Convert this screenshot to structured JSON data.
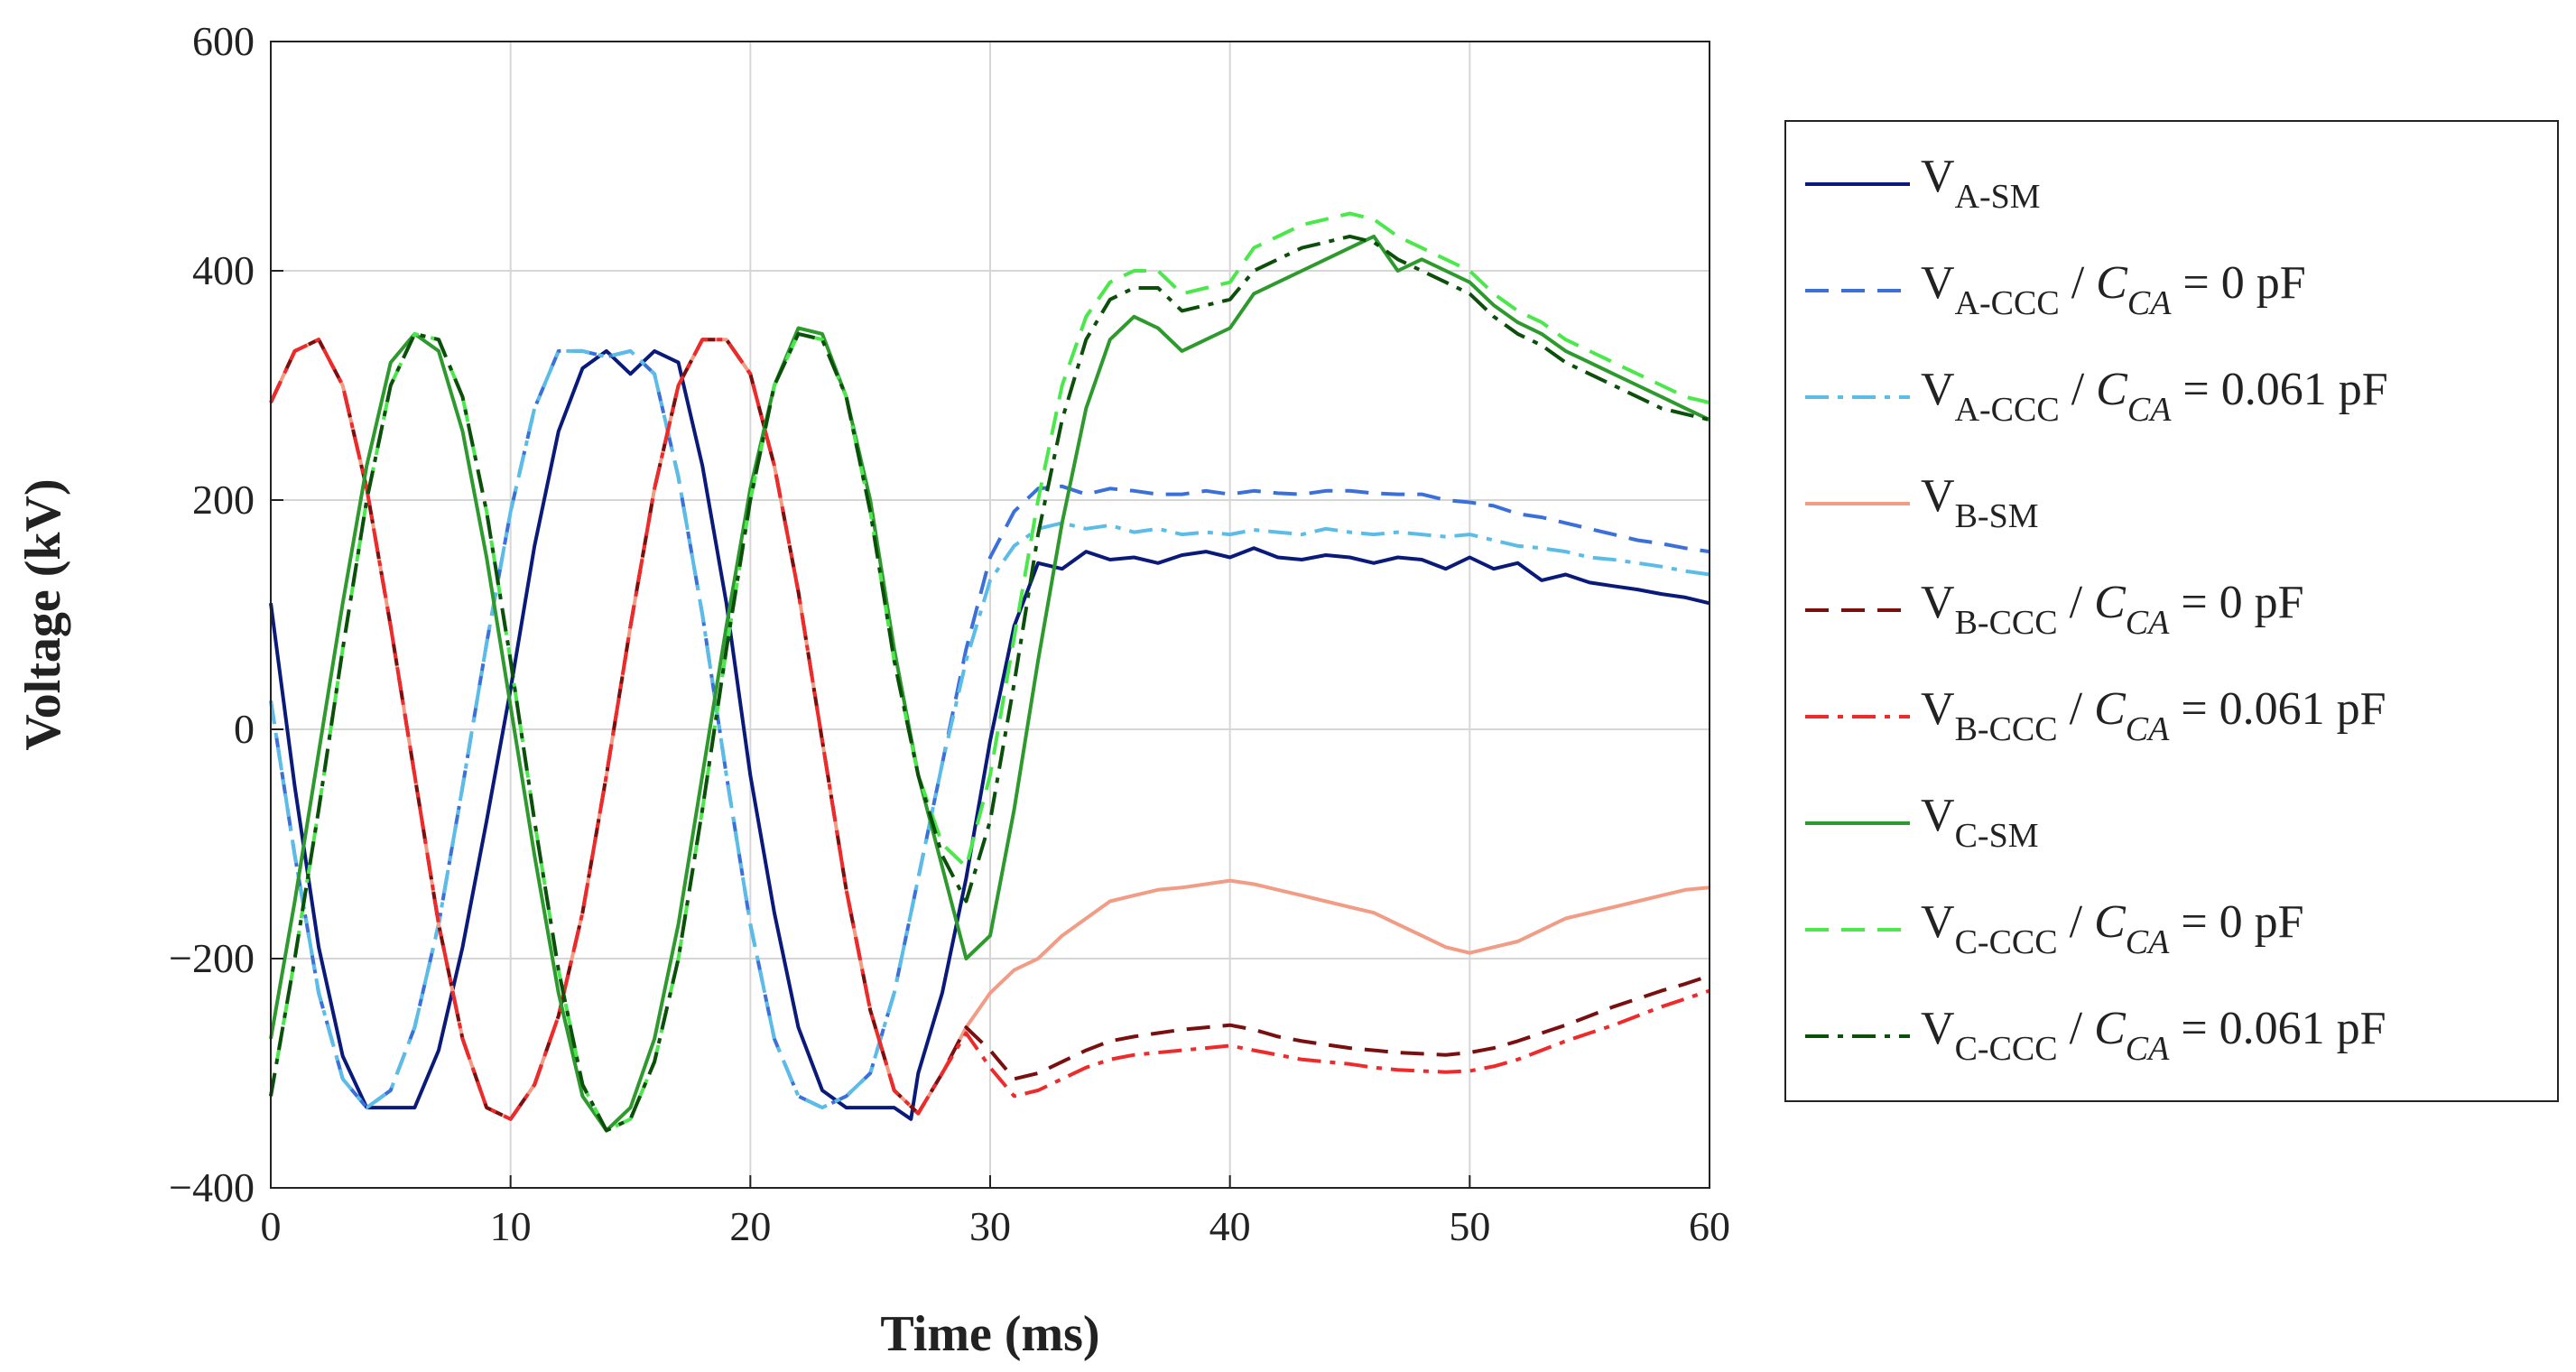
{
  "chart_data": {
    "type": "line",
    "title": "",
    "xlabel": "Time (ms)",
    "ylabel": "Voltage (kV)",
    "xlim": [
      0,
      60
    ],
    "ylim": [
      -400,
      600
    ],
    "xticks": [
      0,
      10,
      20,
      30,
      40,
      50,
      60
    ],
    "yticks": [
      -400,
      -200,
      0,
      200,
      400,
      600
    ],
    "xtick_labels": [
      "0",
      "10",
      "20",
      "30",
      "40",
      "50",
      "60"
    ],
    "ytick_labels": [
      "−400",
      "−200",
      "0",
      "200",
      "400",
      "600"
    ],
    "grid": true,
    "legend_position": "right",
    "legend_sep": " / ",
    "legend_eq": " = ",
    "series": [
      {
        "key": "A-SM",
        "label": "V",
        "sub": "A-SM",
        "cvar": "",
        "cval": "",
        "color": "#0a1a7a",
        "style": "solid",
        "x": [
          0,
          1,
          2,
          3,
          4,
          5,
          6,
          7,
          8,
          9,
          10,
          11,
          12,
          13,
          14,
          15,
          16,
          17,
          18,
          19,
          20,
          21,
          22,
          23,
          24,
          25,
          26,
          26.7,
          27,
          28,
          29,
          30,
          31,
          32,
          33,
          34,
          35,
          36,
          37,
          38,
          39,
          40,
          41,
          42,
          43,
          44,
          45,
          46,
          47,
          48,
          49,
          50,
          51,
          52,
          53,
          54,
          55,
          56,
          57,
          58,
          59,
          60
        ],
        "y": [
          110,
          -50,
          -190,
          -285,
          -330,
          -330,
          -330,
          -280,
          -190,
          -80,
          35,
          160,
          260,
          315,
          330,
          310,
          330,
          320,
          230,
          110,
          -40,
          -160,
          -260,
          -315,
          -330,
          -330,
          -330,
          -340,
          -300,
          -230,
          -130,
          -10,
          90,
          145,
          140,
          155,
          148,
          150,
          145,
          152,
          155,
          150,
          158,
          150,
          148,
          152,
          150,
          145,
          150,
          148,
          140,
          150,
          140,
          145,
          130,
          135,
          128,
          125,
          122,
          118,
          115,
          110
        ]
      },
      {
        "key": "A-CCC0",
        "label": "V",
        "sub": "A-CCC",
        "cvar": "C",
        "csub": "CA",
        "cval": "0 pF",
        "color": "#3b6fd9",
        "style": "dashed",
        "x": [
          0,
          1,
          2,
          3,
          4,
          5,
          6,
          7,
          8,
          9,
          10,
          11,
          12,
          13,
          14,
          15,
          16,
          17,
          18,
          19,
          20,
          21,
          22,
          23,
          24,
          25,
          26,
          27,
          28,
          29,
          30,
          31,
          32,
          33,
          34,
          35,
          36,
          37,
          38,
          39,
          40,
          41,
          42,
          43,
          44,
          45,
          46,
          47,
          48,
          49,
          50,
          51,
          52,
          53,
          54,
          55,
          56,
          57,
          58,
          59,
          60
        ],
        "y": [
          25,
          -110,
          -230,
          -305,
          -330,
          -315,
          -260,
          -170,
          -50,
          75,
          190,
          280,
          330,
          330,
          325,
          330,
          310,
          220,
          100,
          -40,
          -170,
          -270,
          -320,
          -330,
          -320,
          -300,
          -230,
          -130,
          -30,
          70,
          150,
          190,
          210,
          212,
          205,
          210,
          208,
          205,
          205,
          208,
          205,
          208,
          206,
          205,
          208,
          208,
          206,
          205,
          205,
          200,
          198,
          195,
          188,
          185,
          180,
          175,
          170,
          165,
          162,
          158,
          155
        ]
      },
      {
        "key": "A-CCC061",
        "label": "V",
        "sub": "A-CCC",
        "cvar": "C",
        "csub": "CA",
        "cval": "0.061 pF",
        "color": "#5bbce8",
        "style": "dashdot",
        "x": [
          0,
          1,
          2,
          3,
          4,
          5,
          6,
          7,
          8,
          9,
          10,
          11,
          12,
          13,
          14,
          15,
          16,
          17,
          18,
          19,
          20,
          21,
          22,
          23,
          24,
          25,
          26,
          27,
          28,
          29,
          30,
          31,
          32,
          33,
          34,
          35,
          36,
          37,
          38,
          39,
          40,
          41,
          42,
          43,
          44,
          45,
          46,
          47,
          48,
          49,
          50,
          51,
          52,
          53,
          54,
          55,
          56,
          57,
          58,
          59,
          60
        ],
        "y": [
          25,
          -110,
          -230,
          -305,
          -330,
          -315,
          -260,
          -170,
          -50,
          75,
          190,
          280,
          330,
          330,
          325,
          330,
          310,
          220,
          100,
          -40,
          -170,
          -270,
          -320,
          -330,
          -320,
          -300,
          -230,
          -130,
          -30,
          60,
          130,
          160,
          175,
          180,
          175,
          178,
          172,
          175,
          170,
          172,
          170,
          174,
          172,
          170,
          175,
          172,
          170,
          172,
          170,
          168,
          170,
          165,
          160,
          158,
          155,
          150,
          148,
          145,
          142,
          138,
          135
        ]
      },
      {
        "key": "B-SM",
        "label": "V",
        "sub": "B-SM",
        "cvar": "",
        "cval": "",
        "color": "#f29c86",
        "style": "solid",
        "x": [
          0,
          1,
          2,
          3,
          4,
          5,
          6,
          7,
          8,
          9,
          10,
          11,
          12,
          13,
          14,
          15,
          16,
          17,
          18,
          19,
          20,
          21,
          22,
          23,
          24,
          25,
          26,
          27,
          28,
          29,
          30,
          31,
          32,
          33,
          34,
          35,
          36,
          37,
          38,
          39,
          40,
          41,
          42,
          43,
          44,
          45,
          46,
          47,
          48,
          49,
          50,
          51,
          52,
          53,
          54,
          55,
          56,
          57,
          58,
          59,
          60
        ],
        "y": [
          285,
          330,
          340,
          300,
          210,
          90,
          -40,
          -170,
          -270,
          -330,
          -340,
          -310,
          -250,
          -160,
          -40,
          90,
          210,
          300,
          340,
          340,
          310,
          230,
          120,
          -10,
          -140,
          -245,
          -315,
          -335,
          -300,
          -260,
          -230,
          -210,
          -200,
          -180,
          -165,
          -150,
          -145,
          -140,
          -138,
          -135,
          -132,
          -135,
          -140,
          -145,
          -150,
          -155,
          -160,
          -170,
          -180,
          -190,
          -195,
          -190,
          -185,
          -175,
          -165,
          -160,
          -155,
          -150,
          -145,
          -140,
          -138
        ]
      },
      {
        "key": "B-CCC0",
        "label": "V",
        "sub": "B-CCC",
        "cvar": "C",
        "csub": "CA",
        "cval": "0 pF",
        "color": "#7a0f0f",
        "style": "dashed",
        "x": [
          0,
          1,
          2,
          3,
          4,
          5,
          6,
          7,
          8,
          9,
          10,
          11,
          12,
          13,
          14,
          15,
          16,
          17,
          18,
          19,
          20,
          21,
          22,
          23,
          24,
          25,
          26,
          27,
          28,
          29,
          30,
          31,
          32,
          33,
          34,
          35,
          36,
          37,
          38,
          39,
          40,
          41,
          42,
          43,
          44,
          45,
          46,
          47,
          48,
          49,
          50,
          51,
          52,
          53,
          54,
          55,
          56,
          57,
          58,
          59,
          60
        ],
        "y": [
          285,
          330,
          340,
          300,
          210,
          90,
          -40,
          -170,
          -270,
          -330,
          -340,
          -310,
          -250,
          -160,
          -40,
          90,
          210,
          300,
          340,
          340,
          310,
          230,
          120,
          -10,
          -140,
          -245,
          -315,
          -335,
          -300,
          -260,
          -280,
          -305,
          -300,
          -290,
          -280,
          -272,
          -268,
          -265,
          -262,
          -260,
          -258,
          -262,
          -268,
          -272,
          -275,
          -278,
          -280,
          -282,
          -283,
          -284,
          -282,
          -278,
          -272,
          -265,
          -258,
          -250,
          -242,
          -235,
          -228,
          -222,
          -215
        ]
      },
      {
        "key": "B-CCC061",
        "label": "V",
        "sub": "B-CCC",
        "cvar": "C",
        "csub": "CA",
        "cval": "0.061 pF",
        "color": "#ee2a2a",
        "style": "dashdot",
        "x": [
          0,
          1,
          2,
          3,
          4,
          5,
          6,
          7,
          8,
          9,
          10,
          11,
          12,
          13,
          14,
          15,
          16,
          17,
          18,
          19,
          20,
          21,
          22,
          23,
          24,
          25,
          26,
          27,
          28,
          29,
          30,
          31,
          32,
          33,
          34,
          35,
          36,
          37,
          38,
          39,
          40,
          41,
          42,
          43,
          44,
          45,
          46,
          47,
          48,
          49,
          50,
          51,
          52,
          53,
          54,
          55,
          56,
          57,
          58,
          59,
          60
        ],
        "y": [
          285,
          330,
          340,
          300,
          210,
          90,
          -40,
          -170,
          -270,
          -330,
          -340,
          -310,
          -250,
          -160,
          -40,
          90,
          210,
          300,
          340,
          340,
          310,
          230,
          120,
          -10,
          -140,
          -245,
          -315,
          -335,
          -300,
          -265,
          -295,
          -320,
          -315,
          -305,
          -295,
          -288,
          -284,
          -282,
          -280,
          -278,
          -276,
          -280,
          -284,
          -288,
          -290,
          -292,
          -295,
          -297,
          -298,
          -299,
          -298,
          -294,
          -288,
          -280,
          -272,
          -265,
          -258,
          -250,
          -242,
          -235,
          -228
        ]
      },
      {
        "key": "C-SM",
        "label": "V",
        "sub": "C-SM",
        "cvar": "",
        "cval": "",
        "color": "#2e9a2e",
        "style": "solid",
        "x": [
          0,
          1,
          2,
          3,
          4,
          5,
          6,
          7,
          8,
          9,
          10,
          11,
          12,
          13,
          14,
          15,
          16,
          17,
          18,
          19,
          20,
          21,
          22,
          23,
          24,
          25,
          26,
          27,
          28,
          29,
          30,
          31,
          32,
          33,
          34,
          35,
          36,
          37,
          38,
          39,
          40,
          41,
          42,
          43,
          44,
          45,
          46,
          47,
          48,
          49,
          50,
          51,
          52,
          53,
          54,
          55,
          56,
          57,
          58,
          59,
          60
        ],
        "y": [
          -270,
          -150,
          -20,
          110,
          230,
          320,
          345,
          330,
          260,
          150,
          20,
          -110,
          -230,
          -320,
          -350,
          -330,
          -270,
          -170,
          -40,
          90,
          210,
          300,
          350,
          345,
          290,
          200,
          70,
          -40,
          -120,
          -200,
          -180,
          -70,
          60,
          180,
          280,
          340,
          360,
          350,
          330,
          340,
          350,
          380,
          390,
          400,
          410,
          420,
          430,
          400,
          410,
          400,
          390,
          370,
          355,
          345,
          330,
          320,
          310,
          300,
          290,
          280,
          270
        ]
      },
      {
        "key": "C-CCC0",
        "label": "V",
        "sub": "C-CCC",
        "cvar": "C",
        "csub": "CA",
        "cval": "0 pF",
        "color": "#4be84b",
        "style": "dashed",
        "x": [
          0,
          1,
          2,
          3,
          4,
          5,
          6,
          7,
          8,
          9,
          10,
          11,
          12,
          13,
          14,
          15,
          16,
          17,
          18,
          19,
          20,
          21,
          22,
          23,
          24,
          25,
          26,
          27,
          28,
          29,
          30,
          31,
          32,
          33,
          34,
          35,
          36,
          37,
          38,
          39,
          40,
          41,
          42,
          43,
          44,
          45,
          46,
          47,
          48,
          49,
          50,
          51,
          52,
          53,
          54,
          55,
          56,
          57,
          58,
          59,
          60
        ],
        "y": [
          -320,
          -200,
          -70,
          70,
          200,
          300,
          345,
          340,
          290,
          190,
          60,
          -80,
          -210,
          -310,
          -350,
          -340,
          -290,
          -200,
          -70,
          70,
          200,
          300,
          345,
          340,
          290,
          190,
          60,
          -40,
          -100,
          -120,
          -40,
          80,
          200,
          300,
          360,
          390,
          400,
          400,
          380,
          385,
          390,
          420,
          430,
          440,
          445,
          450,
          445,
          430,
          420,
          410,
          400,
          380,
          365,
          355,
          340,
          330,
          320,
          310,
          300,
          290,
          285
        ]
      },
      {
        "key": "C-CCC061",
        "label": "V",
        "sub": "C-CCC",
        "cvar": "C",
        "csub": "CA",
        "cval": "0.061 pF",
        "color": "#0b4f0b",
        "style": "dashdot",
        "x": [
          0,
          1,
          2,
          3,
          4,
          5,
          6,
          7,
          8,
          9,
          10,
          11,
          12,
          13,
          14,
          15,
          16,
          17,
          18,
          19,
          20,
          21,
          22,
          23,
          24,
          25,
          26,
          27,
          28,
          29,
          30,
          31,
          32,
          33,
          34,
          35,
          36,
          37,
          38,
          39,
          40,
          41,
          42,
          43,
          44,
          45,
          46,
          47,
          48,
          49,
          50,
          51,
          52,
          53,
          54,
          55,
          56,
          57,
          58,
          59,
          60
        ],
        "y": [
          -320,
          -200,
          -70,
          70,
          200,
          300,
          345,
          340,
          290,
          190,
          60,
          -80,
          -210,
          -310,
          -350,
          -340,
          -290,
          -200,
          -70,
          70,
          200,
          300,
          345,
          340,
          290,
          190,
          60,
          -40,
          -110,
          -150,
          -80,
          40,
          170,
          270,
          340,
          375,
          385,
          385,
          365,
          370,
          375,
          400,
          410,
          420,
          425,
          430,
          425,
          410,
          400,
          390,
          380,
          360,
          345,
          335,
          320,
          310,
          300,
          290,
          280,
          275,
          270
        ]
      }
    ]
  }
}
